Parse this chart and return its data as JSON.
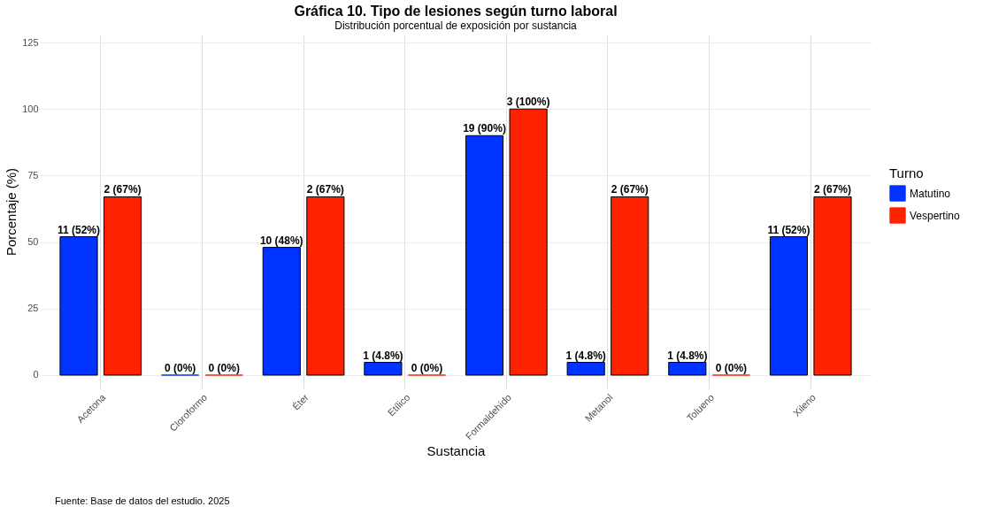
{
  "chart_data": {
    "type": "bar",
    "title": "Gráfica 10. Tipo de lesiones según turno laboral",
    "subtitle": "Distribución porcentual de exposición por sustancia",
    "xlabel": "Sustancia",
    "ylabel": "Porcentaje (%)",
    "legend_title": "Turno",
    "legend": "right",
    "grid": true,
    "categories": [
      "Acetona",
      "Cloroformo",
      "Éter",
      "Etílico",
      "Formaldehído",
      "Metanol",
      "Tolueno",
      "Xileno"
    ],
    "series": [
      {
        "name": "Matutino",
        "color": "#0033ff",
        "values": [
          52,
          0,
          48,
          4.8,
          90,
          4.8,
          4.8,
          52
        ],
        "value_labels": [
          "11 (52%)",
          "0 (0%)",
          "10 (48%)",
          "1 (4.8%)",
          "19 (90%)",
          "1 (4.8%)",
          "1 (4.8%)",
          "11 (52%)"
        ]
      },
      {
        "name": "Vespertino",
        "color": "#ff2200",
        "values": [
          67,
          0,
          67,
          0,
          100,
          67,
          0,
          67
        ],
        "value_labels": [
          "2 (67%)",
          "0 (0%)",
          "2 (67%)",
          "0 (0%)",
          "3 (100%)",
          "2 (67%)",
          "0 (0%)",
          "2 (67%)"
        ]
      }
    ],
    "ylim": [
      -5,
      128
    ],
    "yticks": [
      0,
      25,
      50,
      75,
      100,
      125
    ],
    "annotations": [
      "Fuente: Base de datos del estudio. 2025"
    ]
  }
}
